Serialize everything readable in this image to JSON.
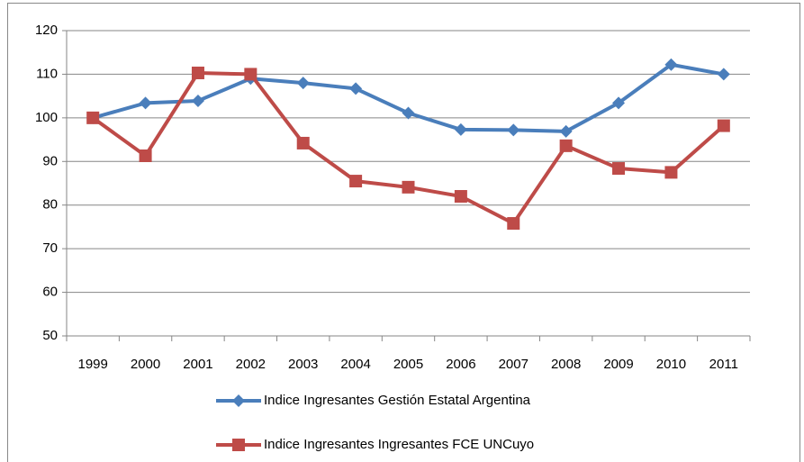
{
  "chart_data": {
    "type": "line",
    "categories": [
      "1999",
      "2000",
      "2001",
      "2002",
      "2003",
      "2004",
      "2005",
      "2006",
      "2007",
      "2008",
      "2009",
      "2010",
      "2011"
    ],
    "series": [
      {
        "name": "Indice Ingresantes Gestión Estatal  Argentina",
        "color": "#4a7ebb",
        "marker": "diamond",
        "values": [
          100,
          103.4,
          103.9,
          109,
          108,
          106.7,
          101.1,
          97.3,
          97.2,
          96.9,
          103.4,
          112.2,
          110
        ]
      },
      {
        "name": "Indice Ingresantes Ingresantes FCE UNCuyo",
        "color": "#be4b48",
        "marker": "square",
        "values": [
          100,
          91.3,
          110.3,
          110,
          94.2,
          85.5,
          84.1,
          82,
          75.8,
          93.6,
          88.4,
          87.5,
          98.2
        ]
      }
    ],
    "ylim": [
      50,
      120
    ],
    "yticks": [
      50,
      60,
      70,
      80,
      90,
      100,
      110,
      120
    ],
    "grid": true,
    "legend": "bottom"
  }
}
